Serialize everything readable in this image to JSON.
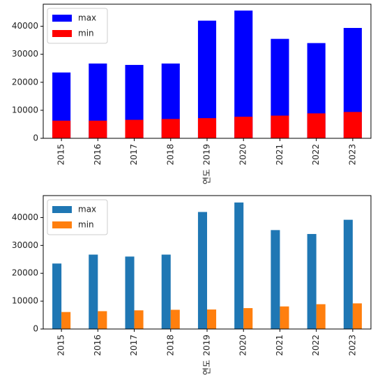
{
  "chart_data": [
    {
      "type": "bar",
      "mode": "overlay",
      "xlabel": "연도",
      "categories": [
        "2015",
        "2016",
        "2017",
        "2018",
        "2019",
        "2020",
        "2021",
        "2022",
        "2023"
      ],
      "series": [
        {
          "name": "max",
          "color": "#0000ff",
          "values": [
            23500,
            26700,
            26200,
            26700,
            42000,
            45600,
            35500,
            34000,
            39400
          ]
        },
        {
          "name": "min",
          "color": "#ff0000",
          "values": [
            6300,
            6300,
            6600,
            6900,
            7200,
            7700,
            8100,
            8900,
            9400
          ]
        }
      ],
      "ylim": [
        0,
        47880
      ],
      "yticks": [
        0,
        10000,
        20000,
        30000,
        40000
      ],
      "legend": "upper left"
    },
    {
      "type": "bar",
      "mode": "grouped",
      "xlabel": "연도",
      "categories": [
        "2015",
        "2016",
        "2017",
        "2018",
        "2019",
        "2020",
        "2021",
        "2022",
        "2023"
      ],
      "series": [
        {
          "name": "max",
          "color": "#1f77b4",
          "values": [
            23500,
            26700,
            26000,
            26700,
            42000,
            45400,
            35500,
            34100,
            39200
          ]
        },
        {
          "name": "min",
          "color": "#ff7f0e",
          "values": [
            6100,
            6400,
            6700,
            6900,
            7000,
            7500,
            8100,
            8900,
            9200
          ]
        }
      ],
      "ylim": [
        0,
        47880
      ],
      "yticks": [
        0,
        10000,
        20000,
        30000,
        40000
      ],
      "legend": "upper left"
    }
  ]
}
